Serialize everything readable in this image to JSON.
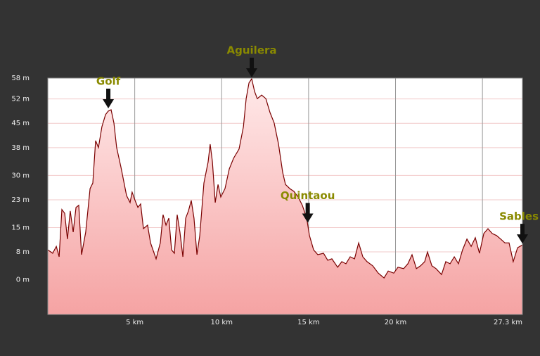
{
  "chart_data": {
    "type": "area",
    "x": [
      0,
      0.28,
      0.49,
      0.65,
      0.81,
      0.97,
      1.13,
      1.29,
      1.46,
      1.62,
      1.78,
      1.94,
      2.18,
      2.43,
      2.59,
      2.75,
      2.91,
      3.11,
      3.32,
      3.48,
      3.64,
      3.8,
      3.96,
      4.21,
      4.53,
      4.73,
      4.85,
      5.02,
      5.18,
      5.34,
      5.5,
      5.74,
      5.91,
      6.23,
      6.47,
      6.63,
      6.8,
      6.96,
      7.12,
      7.28,
      7.44,
      7.6,
      7.77,
      7.93,
      8.09,
      8.25,
      8.41,
      8.58,
      8.74,
      8.98,
      9.22,
      9.34,
      9.47,
      9.63,
      9.79,
      9.95,
      10.19,
      10.44,
      10.68,
      11.0,
      11.25,
      11.41,
      11.57,
      11.73,
      11.89,
      12.05,
      12.3,
      12.54,
      12.78,
      13.02,
      13.27,
      13.51,
      13.67,
      13.92,
      14.16,
      14.4,
      14.64,
      14.89,
      15.05,
      15.29,
      15.53,
      15.86,
      16.1,
      16.34,
      16.67,
      16.91,
      17.15,
      17.39,
      17.64,
      17.88,
      18.12,
      18.36,
      18.69,
      19.01,
      19.34,
      19.58,
      19.9,
      20.14,
      20.47,
      20.71,
      20.95,
      21.2,
      21.44,
      21.68,
      21.84,
      22.09,
      22.33,
      22.65,
      22.89,
      23.14,
      23.38,
      23.62,
      23.86,
      24.11,
      24.35,
      24.59,
      24.83,
      25.08,
      25.32,
      25.56,
      25.81,
      26.05,
      26.29,
      26.53,
      26.77,
      27.02,
      27.3
    ],
    "values": [
      8.6,
      7.6,
      9.6,
      6.6,
      20.2,
      19.1,
      11.7,
      19.8,
      13.7,
      20.8,
      21.4,
      7.2,
      13.7,
      26.2,
      27.8,
      40.0,
      38.0,
      44.0,
      47.5,
      48.5,
      48.9,
      45.1,
      38.0,
      32.3,
      24.2,
      22.2,
      25.2,
      22.8,
      20.8,
      21.8,
      14.7,
      15.7,
      10.6,
      6.0,
      10.6,
      18.7,
      15.7,
      17.7,
      8.6,
      7.6,
      18.7,
      13.7,
      6.6,
      17.7,
      19.8,
      22.8,
      17.7,
      7.2,
      12.7,
      27.8,
      33.9,
      39.0,
      33.9,
      22.2,
      27.4,
      23.8,
      26.2,
      31.9,
      34.9,
      37.6,
      44.0,
      52.1,
      56.6,
      57.8,
      54.2,
      52.1,
      53.1,
      52.1,
      48.1,
      45.1,
      39.0,
      30.9,
      27.4,
      26.2,
      25.4,
      23.8,
      21.4,
      17.7,
      12.7,
      8.6,
      7.2,
      7.6,
      5.6,
      6.0,
      3.6,
      5.2,
      4.6,
      6.6,
      6.0,
      10.6,
      6.6,
      5.2,
      4.0,
      1.9,
      0.5,
      2.5,
      1.9,
      3.6,
      3.2,
      4.6,
      7.2,
      3.2,
      4.0,
      5.2,
      8.0,
      4.0,
      3.2,
      1.5,
      5.2,
      4.6,
      6.6,
      4.6,
      8.6,
      11.7,
      9.6,
      12.1,
      7.6,
      13.3,
      14.7,
      13.3,
      12.7,
      11.7,
      10.6,
      10.6,
      5.2,
      9.2,
      10.0
    ],
    "xlim": [
      0,
      27.3
    ],
    "ylim": [
      -10,
      58
    ],
    "xticks": [
      {
        "value": 5,
        "label": "5 km"
      },
      {
        "value": 10,
        "label": "10 km"
      },
      {
        "value": 15,
        "label": "15 km"
      },
      {
        "value": 20,
        "label": "20 km"
      },
      {
        "value": 27.3,
        "label": "27.3 km"
      }
    ],
    "xgrid": [
      5,
      10,
      15,
      20,
      25
    ],
    "yticks": [
      {
        "value": 0,
        "label": "0 m"
      },
      {
        "value": 8,
        "label": "8 m"
      },
      {
        "value": 15,
        "label": "15 m"
      },
      {
        "value": 23,
        "label": "23 m"
      },
      {
        "value": 30,
        "label": "30 m"
      },
      {
        "value": 38,
        "label": "38 m"
      },
      {
        "value": 45,
        "label": "45 m"
      },
      {
        "value": 52,
        "label": "52 m"
      },
      {
        "value": 58,
        "label": "58 m"
      }
    ],
    "color": "#7a0000",
    "fill_top": "#ffeaea",
    "fill_bottom": "#f5a3a3",
    "annotations": [
      {
        "text": "Golf",
        "x": 3.48,
        "y": 48.9
      },
      {
        "text": "Aguilera",
        "x": 11.73,
        "y": 57.8
      },
      {
        "text": "Quintaou",
        "x": 14.95,
        "y": 16
      },
      {
        "text": "Sables",
        "x": 27.3,
        "y": 10
      }
    ]
  }
}
